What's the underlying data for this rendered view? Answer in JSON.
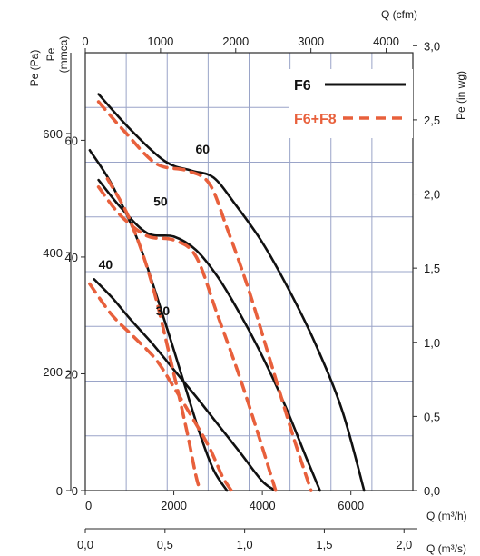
{
  "chart_data": {
    "type": "line",
    "title": "",
    "grid": true,
    "legend_position": "top-right",
    "axes": {
      "x_bottom": {
        "label": "Q (m³/h)",
        "range": [
          0,
          7400
        ],
        "ticks": [
          0,
          2000,
          4000,
          6000
        ],
        "tick_labels": [
          "0",
          "2000",
          "4000",
          "6000"
        ]
      },
      "x_bottom2": {
        "label": "Q (m³/s)",
        "ticks": [
          "0,0",
          "0,5",
          "1,0",
          "1,5",
          "2,0"
        ]
      },
      "x_top": {
        "label": "Q (cfm)",
        "ticks": [
          "0",
          "1000",
          "2000",
          "3000",
          "4000"
        ]
      },
      "y_left_pa": {
        "label": "Pe (Pa)",
        "ticks": [
          "0",
          "200",
          "400",
          "600"
        ]
      },
      "y_left_mmca": {
        "label": "Pe (mmca)",
        "range": [
          0,
          75
        ],
        "ticks": [
          "0",
          "20",
          "40",
          "60"
        ]
      },
      "y_right": {
        "label": "Pe (in wg)",
        "ticks": [
          "0,0",
          "0,5",
          "1,0",
          "1,5",
          "2,0",
          "2,5",
          "3,0"
        ]
      }
    },
    "legend": [
      {
        "label": "F6",
        "color": "#111111",
        "style": "solid"
      },
      {
        "label": "F6+F8",
        "color": "#e8603c",
        "style": "dashed"
      }
    ],
    "curve_labels": [
      "60",
      "50",
      "40",
      "30"
    ],
    "series": [
      {
        "name": "F6",
        "curve": "60",
        "x": [
          300,
          1000,
          1800,
          2400,
          2900,
          3400,
          4000,
          4600,
          5200,
          5800,
          6300
        ],
        "y": [
          67.9,
          62.0,
          56.4,
          54.8,
          53.6,
          48.9,
          42.5,
          34.4,
          25.1,
          13.8,
          0.0
        ]
      },
      {
        "name": "F6",
        "curve": "50",
        "x": [
          300,
          800,
          1400,
          2000,
          2500,
          3000,
          3500,
          4000,
          4500,
          5000,
          5300
        ],
        "y": [
          53.2,
          48.5,
          44.1,
          43.5,
          41.2,
          36.5,
          30.2,
          23.0,
          14.8,
          5.5,
          0.0
        ]
      },
      {
        "name": "F6",
        "curve": "40",
        "x": [
          200,
          600,
          1000,
          1500,
          2000,
          2500,
          3000,
          3500,
          4000,
          4300
        ],
        "y": [
          36.2,
          33.1,
          29.5,
          25.3,
          20.7,
          16.1,
          11.3,
          6.5,
          1.6,
          0.0
        ]
      },
      {
        "name": "F6",
        "curve": "30",
        "x": [
          100,
          600,
          1200,
          1800,
          2200,
          2600,
          2900,
          3200
        ],
        "y": [
          58.3,
          52.4,
          42.6,
          28.9,
          19.2,
          9.5,
          3.5,
          0.0
        ]
      },
      {
        "name": "F6+F8",
        "curve": "60",
        "x": [
          300,
          900,
          1600,
          2300,
          2800,
          3200,
          3700,
          4200,
          4700,
          5100
        ],
        "y": [
          66.6,
          61.4,
          56.0,
          54.8,
          52.6,
          45.0,
          34.2,
          21.7,
          9.2,
          0.0
        ]
      },
      {
        "name": "F6+F8",
        "curve": "50",
        "x": [
          300,
          800,
          1400,
          2000,
          2500,
          3000,
          3500,
          4000,
          4300
        ],
        "y": [
          52.0,
          47.1,
          43.6,
          42.9,
          40.1,
          29.8,
          19.2,
          7.4,
          0.0
        ]
      },
      {
        "name": "F6+F8",
        "curve": "40",
        "x": [
          100,
          600,
          1100,
          1600,
          2000,
          2400,
          2800,
          3100,
          3300
        ],
        "y": [
          35.4,
          30.1,
          26.3,
          22.4,
          17.7,
          12.7,
          7.4,
          2.4,
          0.0
        ]
      },
      {
        "name": "F6+F8",
        "curve": "30",
        "x": [
          500,
          1000,
          1500,
          2000,
          2300,
          2500,
          2600
        ],
        "y": [
          53.4,
          46.5,
          35.6,
          20.0,
          10.0,
          2.5,
          0.0
        ]
      }
    ]
  }
}
